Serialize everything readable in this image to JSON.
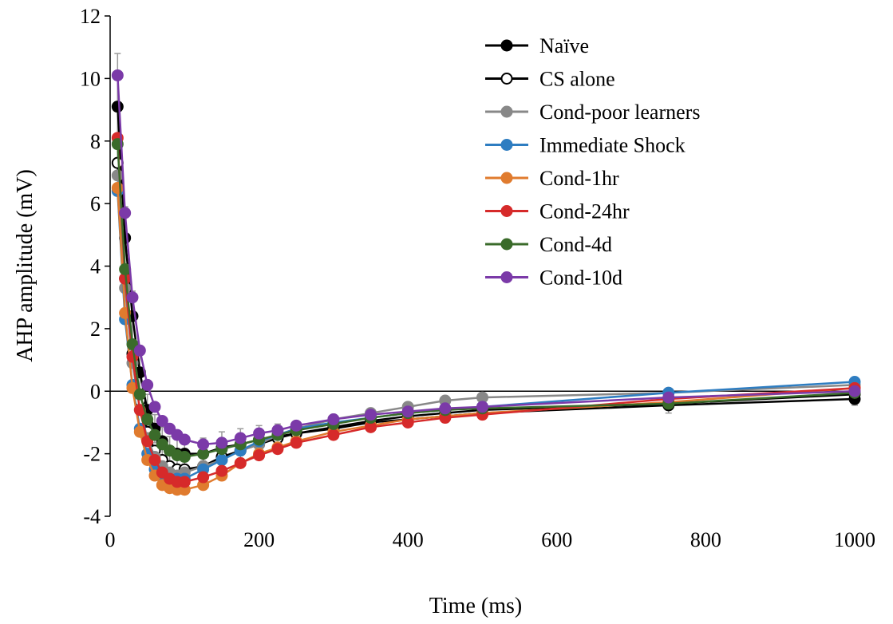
{
  "chart_data": {
    "type": "line",
    "title": "",
    "xlabel": "Time (ms)",
    "ylabel": "AHP amplitude (mV)",
    "xlim": [
      0,
      1000
    ],
    "ylim": [
      -4,
      12
    ],
    "x_ticks": [
      0,
      200,
      400,
      600,
      800,
      1000
    ],
    "y_ticks": [
      -4,
      -2,
      0,
      2,
      4,
      6,
      8,
      10,
      12
    ],
    "x_tick_labels": [
      "0",
      "200",
      "400",
      "600",
      "800",
      "1000"
    ],
    "y_tick_labels": [
      "-4",
      "-2",
      "0",
      "2",
      "4",
      "6",
      "8",
      "10",
      "12"
    ],
    "grid": false,
    "legend_position": "top-right",
    "x": [
      10,
      20,
      30,
      40,
      50,
      60,
      70,
      80,
      90,
      100,
      125,
      150,
      175,
      200,
      225,
      250,
      300,
      350,
      400,
      450,
      500,
      750,
      1000
    ],
    "series": [
      {
        "name": "Naïve",
        "color": "#000000",
        "fill": "#000000",
        "values": [
          9.1,
          4.9,
          2.4,
          0.6,
          -0.6,
          -1.2,
          -1.6,
          -1.9,
          -2.0,
          -2.0,
          -2.0,
          -1.8,
          -1.7,
          -1.55,
          -1.45,
          -1.35,
          -1.2,
          -1.0,
          -0.9,
          -0.8,
          -0.7,
          -0.45,
          -0.25
        ]
      },
      {
        "name": "CS alone",
        "color": "#000000",
        "fill": "#ffffff",
        "values": [
          7.3,
          3.6,
          1.2,
          -0.3,
          -1.3,
          -1.9,
          -2.2,
          -2.4,
          -2.5,
          -2.5,
          -2.4,
          -2.1,
          -1.9,
          -1.7,
          -1.5,
          -1.35,
          -1.15,
          -0.95,
          -0.8,
          -0.7,
          -0.6,
          -0.4,
          -0.1
        ]
      },
      {
        "name": "Cond-poor learners",
        "color": "#888888",
        "fill": "#888888",
        "values": [
          6.9,
          3.3,
          0.9,
          -0.6,
          -1.5,
          -2.1,
          -2.4,
          -2.6,
          -2.7,
          -2.6,
          -2.4,
          -2.2,
          -1.9,
          -1.7,
          -1.4,
          -1.2,
          -0.9,
          -0.7,
          -0.5,
          -0.3,
          -0.2,
          -0.05,
          0.2
        ]
      },
      {
        "name": "Immediate Shock",
        "color": "#2e7dc1",
        "fill": "#2e7dc1",
        "values": [
          6.4,
          2.3,
          0.2,
          -1.2,
          -2.0,
          -2.5,
          -2.7,
          -2.8,
          -2.8,
          -2.8,
          -2.5,
          -2.2,
          -1.9,
          -1.6,
          -1.4,
          -1.2,
          -1.0,
          -0.85,
          -0.7,
          -0.6,
          -0.5,
          -0.05,
          0.3
        ]
      },
      {
        "name": "Cond-1hr",
        "color": "#e07b2e",
        "fill": "#e07b2e",
        "values": [
          6.5,
          2.5,
          0.1,
          -1.3,
          -2.2,
          -2.7,
          -3.0,
          -3.1,
          -3.15,
          -3.15,
          -3.0,
          -2.7,
          -2.3,
          -2.0,
          -1.8,
          -1.6,
          -1.3,
          -1.1,
          -0.9,
          -0.8,
          -0.7,
          -0.35,
          0.1
        ]
      },
      {
        "name": "Cond-24hr",
        "color": "#d62a2a",
        "fill": "#d62a2a",
        "values": [
          8.1,
          3.6,
          1.1,
          -0.6,
          -1.6,
          -2.2,
          -2.6,
          -2.8,
          -2.9,
          -2.9,
          -2.75,
          -2.55,
          -2.3,
          -2.05,
          -1.85,
          -1.65,
          -1.4,
          -1.15,
          -1.0,
          -0.85,
          -0.75,
          -0.25,
          0.1
        ]
      },
      {
        "name": "Cond-4d",
        "color": "#3a6b2a",
        "fill": "#3a6b2a",
        "values": [
          7.9,
          3.9,
          1.5,
          -0.1,
          -0.9,
          -1.4,
          -1.7,
          -1.9,
          -2.05,
          -2.1,
          -2.0,
          -1.85,
          -1.7,
          -1.55,
          -1.4,
          -1.25,
          -1.05,
          -0.85,
          -0.7,
          -0.6,
          -0.55,
          -0.4,
          -0.05
        ]
      },
      {
        "name": "Cond-10d",
        "color": "#7b3aa8",
        "fill": "#7b3aa8",
        "values": [
          10.1,
          5.7,
          3.0,
          1.3,
          0.2,
          -0.5,
          -0.95,
          -1.2,
          -1.4,
          -1.55,
          -1.7,
          -1.65,
          -1.5,
          -1.35,
          -1.25,
          -1.1,
          -0.9,
          -0.75,
          -0.65,
          -0.55,
          -0.5,
          -0.2,
          0.0
        ]
      }
    ],
    "errors": {
      "series": "Naïve",
      "values": [
        1.7,
        1.0,
        0.8,
        0.6,
        0.5,
        0.45,
        0.45,
        0.45,
        0.45,
        0.45,
        0.5,
        0.5,
        0.5,
        0.45,
        0.4,
        0.35,
        0.3,
        0.25,
        0.2,
        0.2,
        0.15,
        0.25,
        0.2
      ]
    }
  }
}
